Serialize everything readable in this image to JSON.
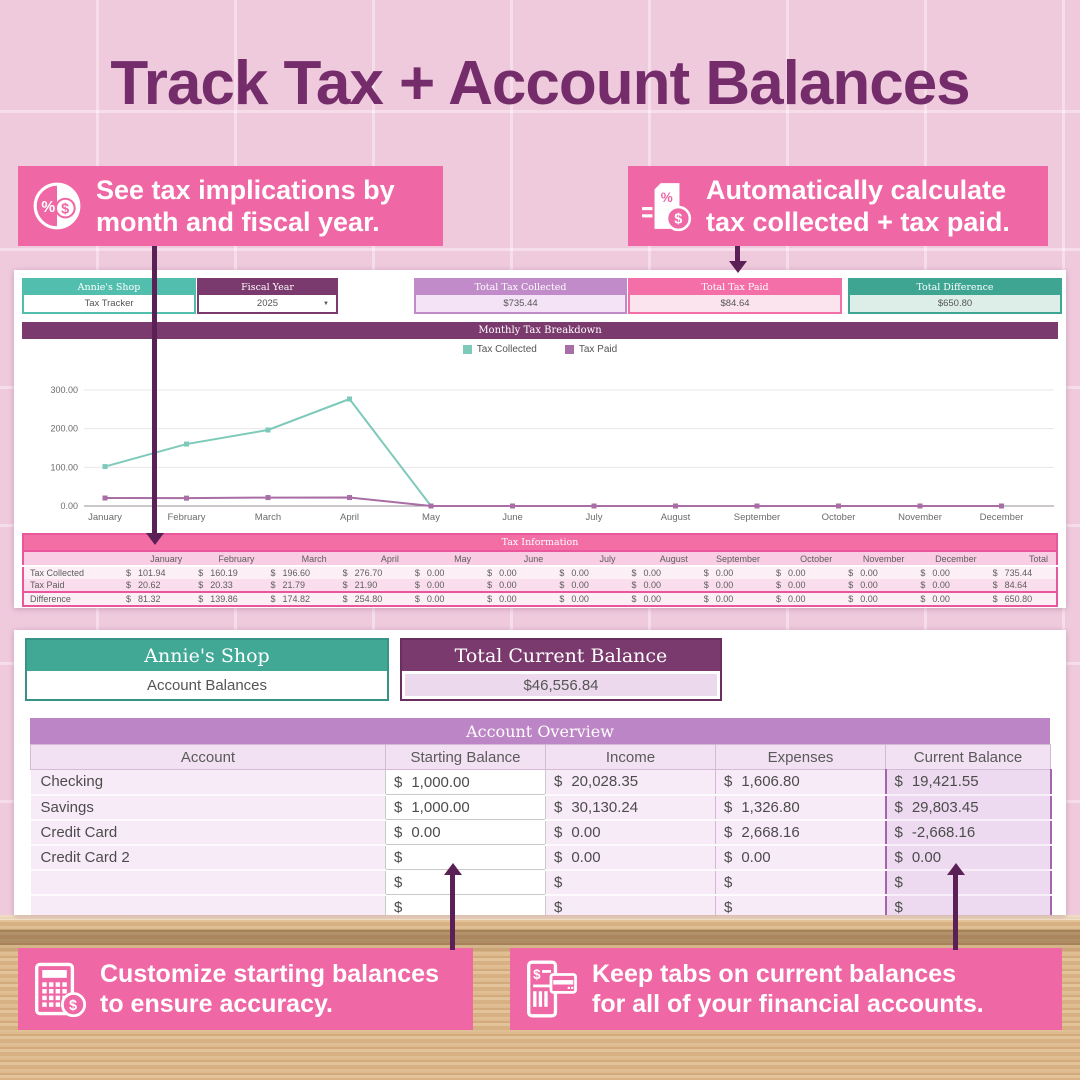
{
  "title": "Track Tax + Account Balances",
  "callouts": {
    "top_left": {
      "icon": "tax-pie-icon",
      "line1": "See tax implications by",
      "line2": "month and fiscal year."
    },
    "top_right": {
      "icon": "document-percent-icon",
      "line1": "Automatically calculate",
      "line2": "tax collected + tax paid."
    },
    "bottom_left": {
      "icon": "calculator-icon",
      "line1": "Customize starting balances",
      "line2": "to ensure accuracy."
    },
    "bottom_right": {
      "icon": "phone-card-icon",
      "line1": "Keep tabs on current balances",
      "line2": "for all of your financial accounts."
    }
  },
  "tax_tracker": {
    "shop_name": "Annie's Shop",
    "sheet_name": "Tax Tracker",
    "fiscal_year_label": "Fiscal Year",
    "fiscal_year_value": "2025",
    "summary": [
      {
        "label": "Total Tax Collected",
        "value": "$735.44",
        "theme": "purple"
      },
      {
        "label": "Total Tax Paid",
        "value": "$84.64",
        "theme": "pink"
      },
      {
        "label": "Total Difference",
        "value": "$650.80",
        "theme": "teal"
      }
    ]
  },
  "chart_data": {
    "type": "line",
    "title": "Monthly Tax Breakdown",
    "categories": [
      "January",
      "February",
      "March",
      "April",
      "May",
      "June",
      "July",
      "August",
      "September",
      "October",
      "November",
      "December"
    ],
    "series": [
      {
        "name": "Tax Collected",
        "color": "#7ecaba",
        "values": [
          101.94,
          160.19,
          196.6,
          276.7,
          0,
          0,
          0,
          0,
          0,
          0,
          0,
          0
        ]
      },
      {
        "name": "Tax Paid",
        "color": "#a96ea5",
        "values": [
          20.62,
          20.33,
          21.79,
          21.9,
          0,
          0,
          0,
          0,
          0,
          0,
          0,
          0
        ]
      }
    ],
    "ylim": [
      0,
      300
    ],
    "yticks": [
      "0.00",
      "100.00",
      "200.00",
      "300.00"
    ],
    "legend_position": "top-center",
    "grid": true
  },
  "tax_table": {
    "title": "Tax Information",
    "columns": [
      "January",
      "February",
      "March",
      "April",
      "May",
      "June",
      "July",
      "August",
      "September",
      "October",
      "November",
      "December",
      "Total"
    ],
    "rows": [
      {
        "label": "Tax Collected",
        "values": [
          "$ 101.94",
          "$ 160.19",
          "$ 196.60",
          "$ 276.70",
          "$ 0.00",
          "$ 0.00",
          "$ 0.00",
          "$ 0.00",
          "$ 0.00",
          "$ 0.00",
          "$ 0.00",
          "$ 0.00",
          "$ 735.44"
        ]
      },
      {
        "label": "Tax Paid",
        "values": [
          "$ 20.62",
          "$ 20.33",
          "$ 21.79",
          "$ 21.90",
          "$ 0.00",
          "$ 0.00",
          "$ 0.00",
          "$ 0.00",
          "$ 0.00",
          "$ 0.00",
          "$ 0.00",
          "$ 0.00",
          "$ 84.64"
        ]
      },
      {
        "label": "Difference",
        "values": [
          "$ 81.32",
          "$ 139.86",
          "$ 174.82",
          "$ 254.80",
          "$ 0.00",
          "$ 0.00",
          "$ 0.00",
          "$ 0.00",
          "$ 0.00",
          "$ 0.00",
          "$ 0.00",
          "$ 0.00",
          "$ 650.80"
        ]
      }
    ]
  },
  "account_balances": {
    "shop_name": "Annie's Shop",
    "sheet_name": "Account Balances",
    "total_label": "Total Current Balance",
    "total_value": "$46,556.84",
    "table": {
      "title": "Account Overview",
      "columns": [
        "Account",
        "Starting Balance",
        "Income",
        "Expenses",
        "Current Balance"
      ],
      "rows": [
        [
          "Checking",
          "$ 1,000.00",
          "$ 20,028.35",
          "$ 1,606.80",
          "$ 19,421.55"
        ],
        [
          "Savings",
          "$ 1,000.00",
          "$ 30,130.24",
          "$ 1,326.80",
          "$ 29,803.45"
        ],
        [
          "Credit Card",
          "$ 0.00",
          "$ 0.00",
          "$ 2,668.16",
          "$ -2,668.16"
        ],
        [
          "Credit Card 2",
          "$",
          "$ 0.00",
          "$ 0.00",
          "$ 0.00"
        ],
        [
          "",
          "$",
          "$",
          "$",
          "$"
        ],
        [
          "",
          "$",
          "$",
          "$",
          "$"
        ]
      ]
    }
  },
  "colors": {
    "background_pink": "#efc9dc",
    "callout_pink": "#ef67a4",
    "title_purple": "#752c6b",
    "arrow_purple": "#5b2156",
    "teal": "#42a896",
    "header_purple": "#7b3a6e",
    "table_header_purple": "#bc85c5",
    "tax_table_pink": "#f46ea6",
    "collected_teal": "#7ecaba",
    "paid_purple": "#a96ea5"
  }
}
